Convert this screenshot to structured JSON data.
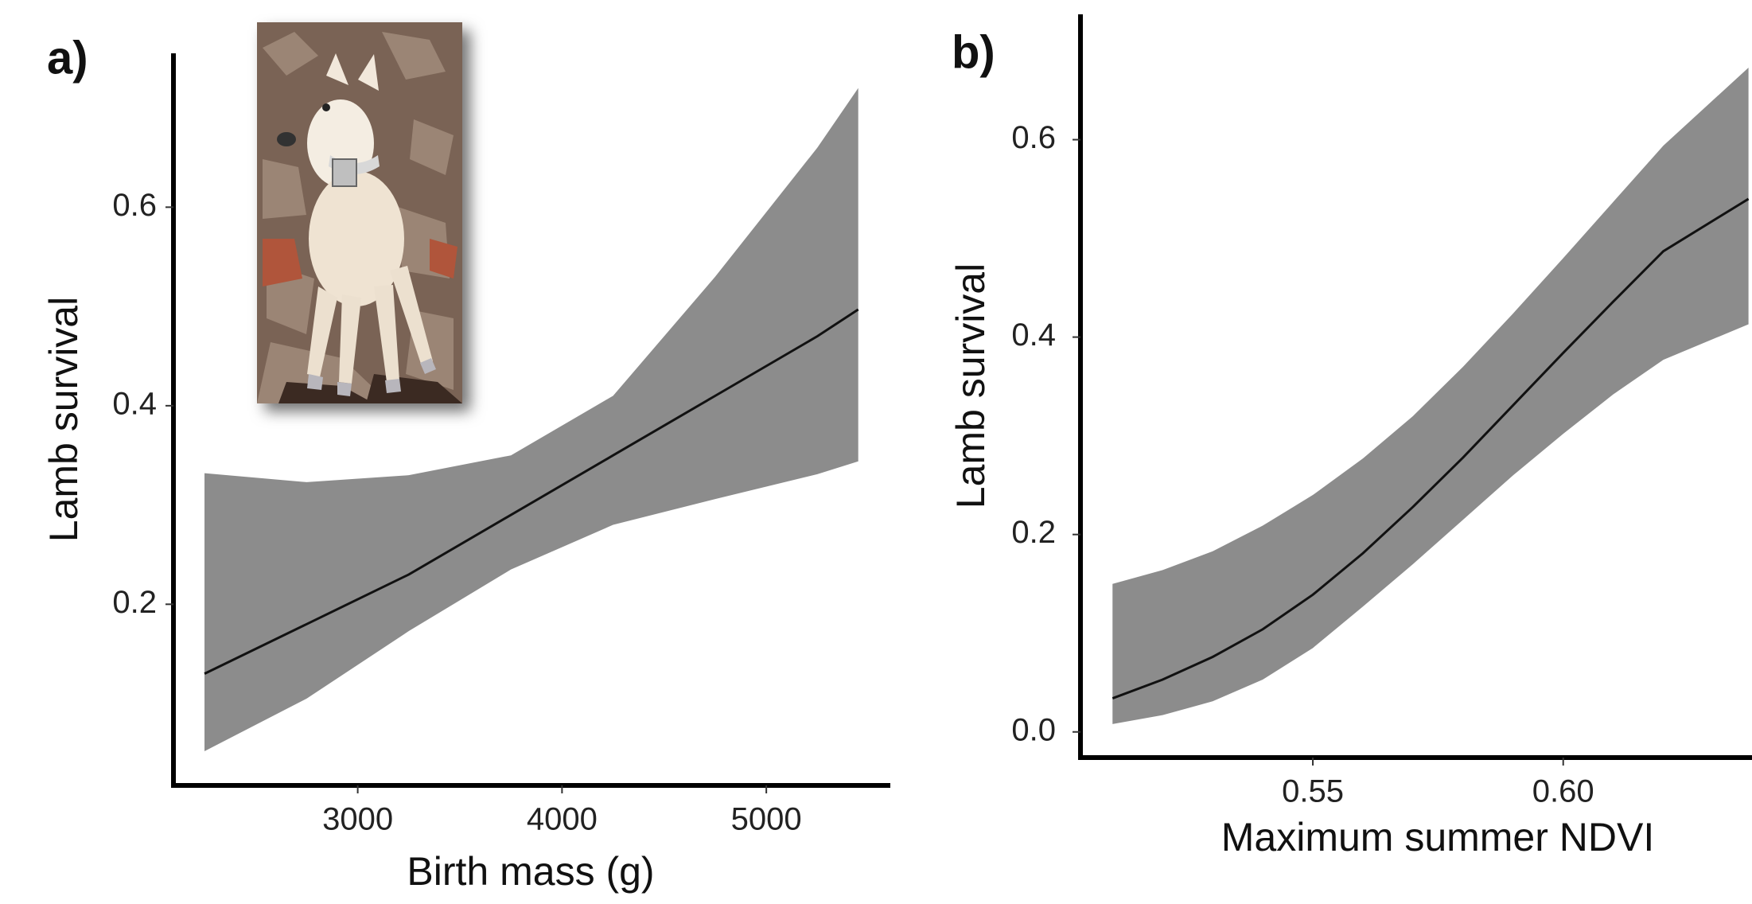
{
  "chart_data": [
    {
      "type": "line",
      "panel_label": "a)",
      "x_label": "Birth mass (g)",
      "y_label": "Lamb survival",
      "x": [
        2250,
        2750,
        3250,
        3750,
        4250,
        4750,
        5250,
        5450
      ],
      "values": [
        0.13,
        0.18,
        0.23,
        0.29,
        0.35,
        0.41,
        0.47,
        0.497
      ],
      "upper": [
        0.332,
        0.323,
        0.33,
        0.35,
        0.41,
        0.53,
        0.66,
        0.72
      ],
      "lower": [
        0.052,
        0.105,
        0.173,
        0.235,
        0.28,
        0.306,
        0.331,
        0.344
      ],
      "color": "#111111",
      "band_color": "#8c8c8c",
      "xlim": [
        2098,
        5607
      ],
      "xticks": [
        3000,
        4000,
        5000
      ],
      "ylim": [
        0.0175,
        0.755
      ],
      "yticks": [
        0.2,
        0.4,
        0.6
      ]
    },
    {
      "type": "line",
      "panel_label": "b)",
      "x_label": "Maximum summer NDVI",
      "y_label": "Lamb survival",
      "x": [
        0.51,
        0.52,
        0.53,
        0.54,
        0.55,
        0.56,
        0.57,
        0.58,
        0.59,
        0.6,
        0.61,
        0.62,
        0.637
      ],
      "values": [
        0.034,
        0.053,
        0.076,
        0.104,
        0.139,
        0.181,
        0.228,
        0.278,
        0.331,
        0.384,
        0.436,
        0.487,
        0.54
      ],
      "upper": [
        0.15,
        0.164,
        0.183,
        0.209,
        0.24,
        0.277,
        0.32,
        0.37,
        0.424,
        0.48,
        0.537,
        0.594,
        0.673
      ],
      "lower": [
        0.008,
        0.017,
        0.031,
        0.053,
        0.085,
        0.127,
        0.17,
        0.215,
        0.26,
        0.302,
        0.342,
        0.377,
        0.413
      ],
      "color": "#111111",
      "band_color": "#8c8c8c",
      "xlim": [
        0.5036,
        0.6377
      ],
      "xticks": [
        0.55,
        {
          "value": 0.6,
          "label": "0.60"
        }
      ],
      "ylim": [
        -0.026,
        0.727
      ],
      "yticks": [
        {
          "value": 0,
          "label": "0.0"
        },
        0.2,
        0.4,
        0.6
      ]
    }
  ]
}
